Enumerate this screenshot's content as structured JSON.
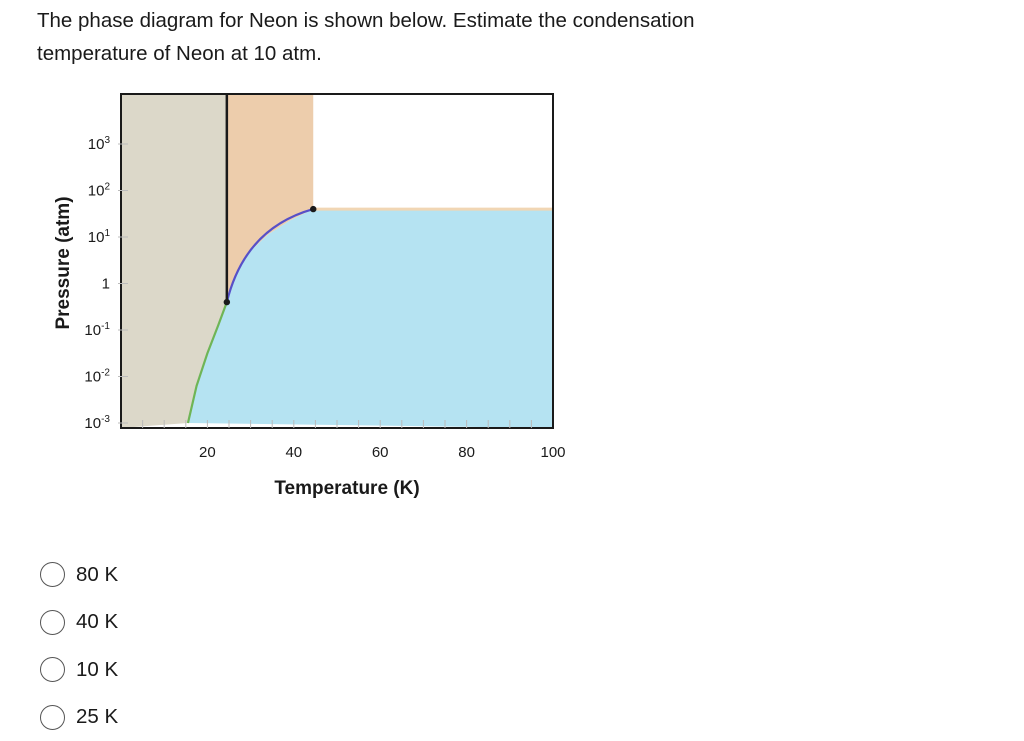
{
  "question": {
    "line1": "The phase diagram for Neon is shown below. Estimate the  condensation",
    "line2": "temperature of Neon at 10 atm."
  },
  "chart_data": {
    "type": "phase-diagram",
    "xlabel": "Temperature (K)",
    "ylabel": "Pressure (atm)",
    "xlim": [
      0,
      100
    ],
    "y_scale": "log",
    "ylim_exponent": [
      -3,
      4
    ],
    "x_ticks": [
      20,
      40,
      60,
      80,
      100
    ],
    "y_ticks": [
      {
        "exp": -3,
        "base": "10",
        "sup": "-3"
      },
      {
        "exp": -2,
        "base": "10",
        "sup": "-2"
      },
      {
        "exp": -1,
        "base": "10",
        "sup": "-1"
      },
      {
        "exp": 0,
        "base": "1",
        "sup": ""
      },
      {
        "exp": 1,
        "base": "10",
        "sup": "1"
      },
      {
        "exp": 2,
        "base": "10",
        "sup": "2"
      },
      {
        "exp": 3,
        "base": "10",
        "sup": "3"
      }
    ],
    "triple_point": {
      "T": 24.5,
      "P_exp": -0.4
    },
    "critical_point": {
      "T": 44.5,
      "P_exp": 1.6
    },
    "sublimation_curve": [
      [
        15.5,
        -3
      ],
      [
        17.5,
        -2.2
      ],
      [
        20,
        -1.5
      ],
      [
        22.5,
        -0.9
      ],
      [
        24.5,
        -0.4
      ]
    ],
    "vaporization_curve": [
      [
        24.5,
        -0.4
      ],
      [
        27,
        0.25
      ],
      [
        30,
        0.7
      ],
      [
        34,
        1.05
      ],
      [
        39,
        1.35
      ],
      [
        44.5,
        1.6
      ]
    ],
    "melting_line_T": 24.5,
    "supercritical_T": 44.5,
    "colors": {
      "solid": "#dcd8c9",
      "liquid": "#edcdac",
      "gas": "#b5e3f2",
      "sublimation_curve": "#6fb556",
      "vaporization_curve": "#5750c8",
      "melting_line": "#1a1a1a",
      "supercritical_edge": "#f1d6b4"
    }
  },
  "options": [
    {
      "label": "80 K"
    },
    {
      "label": "40 K"
    },
    {
      "label": "10 K"
    },
    {
      "label": "25 K"
    }
  ]
}
